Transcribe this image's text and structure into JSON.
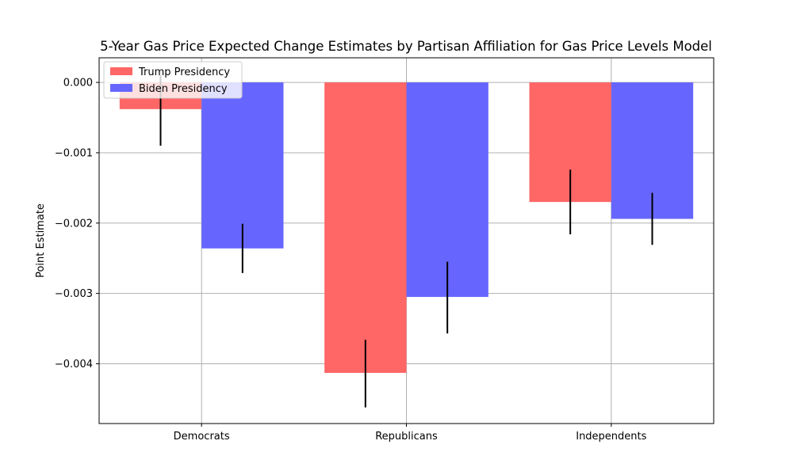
{
  "chart_data": {
    "type": "bar",
    "title": "5-Year Gas Price Expected Change Estimates by Partisan Affiliation for Gas Price Levels Model",
    "xlabel": "",
    "ylabel": "Point Estimate",
    "categories": [
      "Democrats",
      "Republicans",
      "Independents"
    ],
    "series": [
      {
        "name": "Trump Presidency",
        "color": "#ff6666",
        "values": [
          -0.00038,
          -0.00413,
          -0.0017
        ],
        "error_low": [
          -0.0009,
          -0.00462,
          -0.00216
        ],
        "error_high": [
          0.0001,
          -0.00366,
          -0.00124
        ]
      },
      {
        "name": "Biden Presidency",
        "color": "#6666ff",
        "values": [
          -0.00236,
          -0.00305,
          -0.00194
        ],
        "error_low": [
          -0.00271,
          -0.00357,
          -0.00231
        ],
        "error_high": [
          -0.00201,
          -0.00255,
          -0.00157
        ]
      }
    ],
    "yticks": [
      "0.000",
      "−0.001",
      "−0.002",
      "−0.003",
      "−0.004"
    ],
    "ytick_values": [
      0,
      -0.001,
      -0.002,
      -0.003,
      -0.004
    ],
    "ylim": [
      -0.00485,
      0.00035
    ],
    "grid": true,
    "legend_position": "top-left"
  }
}
